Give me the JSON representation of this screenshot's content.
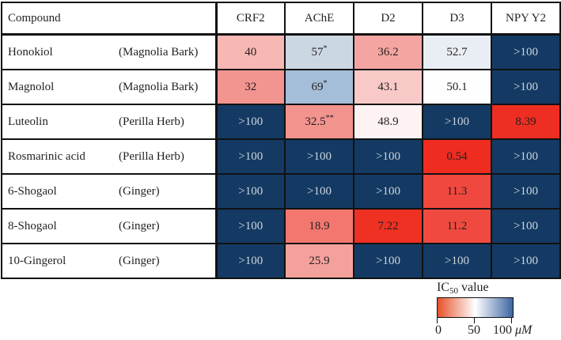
{
  "table": {
    "header": {
      "compound_label": "Compound",
      "target_labels": [
        "CRF2",
        "AChE",
        "D2",
        "D3",
        "NPY Y2"
      ]
    },
    "rows": [
      {
        "name": "Honokiol",
        "source": "(Magnolia Bark)",
        "values": [
          "40",
          "57*",
          "36.2",
          "52.7",
          ">100"
        ],
        "cell_colors": [
          "#f7b7b3",
          "#ccd7e4",
          "#f5a5a1",
          "#e9eef4",
          "#143a63"
        ]
      },
      {
        "name": "Magnolol",
        "source": "(Magnolia Bark)",
        "values": [
          "32",
          "69*",
          "43.1",
          "50.1",
          ">100"
        ],
        "cell_colors": [
          "#f29590",
          "#a4bdd8",
          "#f8c9c7",
          "#fefefe",
          "#143a63"
        ]
      },
      {
        "name": "Luteolin",
        "source": "(Perilla Herb)",
        "values": [
          ">100",
          "32.5**",
          "48.9",
          ">100",
          "8.39"
        ],
        "cell_colors": [
          "#143a63",
          "#f2938e",
          "#fdf3f2",
          "#143a63",
          "#ee2e22"
        ]
      },
      {
        "name": "Rosmarinic acid",
        "source": "(Perilla Herb)",
        "values": [
          ">100",
          ">100",
          ">100",
          "0.54",
          ">100"
        ],
        "cell_colors": [
          "#143a63",
          "#143a63",
          "#143a63",
          "#ee2c20",
          "#143a63"
        ]
      },
      {
        "name": "6-Shogaol",
        "source": "(Ginger)",
        "values": [
          ">100",
          ">100",
          ">100",
          "11.3",
          ">100"
        ],
        "cell_colors": [
          "#143a63",
          "#143a63",
          "#143a63",
          "#f0483e",
          "#143a63"
        ]
      },
      {
        "name": "8-Shogaol",
        "source": "(Ginger)",
        "values": [
          ">100",
          "18.9",
          "7.22",
          "11.2",
          ">100"
        ],
        "cell_colors": [
          "#143a63",
          "#f4776f",
          "#ee3123",
          "#f04a40",
          "#143a63"
        ]
      },
      {
        "name": "10-Gingerol",
        "source": "(Ginger)",
        "values": [
          ">100",
          "25.9",
          ">100",
          ">100",
          ">100"
        ],
        "cell_colors": [
          "#143a63",
          "#f5a19b",
          "#143a63",
          "#143a63",
          "#143a63"
        ]
      }
    ]
  },
  "legend": {
    "title_prefix": "IC",
    "title_subscript": "50",
    "title_suffix": " value",
    "tick_labels": [
      "0",
      "50",
      "100"
    ],
    "unit": "μM",
    "gradient_colors": [
      "#e6512a",
      "#ffffff",
      "#3d66a2"
    ]
  },
  "palette": {
    "saturated_cell": "#143a63",
    "cell_text_dark": "#231f20",
    "cell_text_light": "#ccd5de",
    "border": "#111111",
    "background": "#ffffff"
  },
  "chart_data": {
    "type": "heatmap",
    "title": "IC50 value",
    "unit": "μM",
    "columns": [
      "CRF2",
      "AChE",
      "D2",
      "D3",
      "NPY Y2"
    ],
    "rows": [
      "Honokiol (Magnolia Bark)",
      "Magnolol (Magnolia Bark)",
      "Luteolin (Perilla Herb)",
      "Rosmarinic acid (Perilla Herb)",
      "6-Shogaol (Ginger)",
      "8-Shogaol (Ginger)",
      "10-Gingerol (Ginger)"
    ],
    "values": [
      [
        40,
        57,
        36.2,
        52.7,
        ">100"
      ],
      [
        32,
        69,
        43.1,
        50.1,
        ">100"
      ],
      [
        ">100",
        32.5,
        48.9,
        ">100",
        8.39
      ],
      [
        ">100",
        ">100",
        ">100",
        0.54,
        ">100"
      ],
      [
        ">100",
        ">100",
        ">100",
        11.3,
        ">100"
      ],
      [
        ">100",
        18.9,
        7.22,
        11.2,
        ">100"
      ],
      [
        ">100",
        25.9,
        ">100",
        ">100",
        ">100"
      ]
    ],
    "annotations": [
      {
        "row": "Honokiol",
        "column": "AChE",
        "marker": "*"
      },
      {
        "row": "Magnolol",
        "column": "AChE",
        "marker": "*"
      },
      {
        "row": "Luteolin",
        "column": "AChE",
        "marker": "**"
      }
    ],
    "colormap": {
      "type": "diverging",
      "domain": [
        0,
        50,
        100
      ],
      "colors": [
        "#e6512a",
        "#ffffff",
        "#3d66a2"
      ],
      "over_value_color": "#143a63",
      "over_value_label": ">100"
    },
    "legend_position": "bottom-right"
  }
}
